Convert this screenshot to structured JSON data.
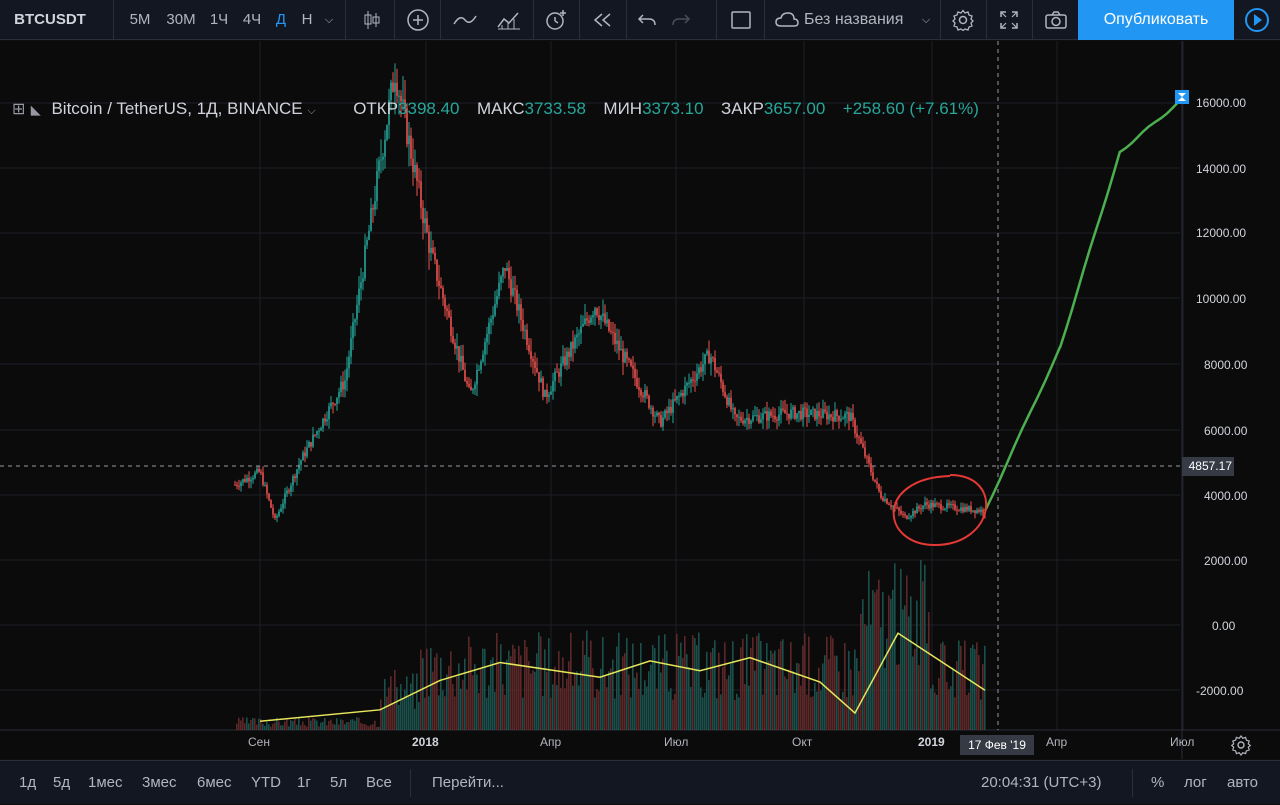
{
  "toolbar": {
    "symbol": "BTCUSDT",
    "timeframes": [
      "5М",
      "30М",
      "1Ч",
      "4Ч",
      "Д",
      "Н"
    ],
    "active_timeframe": "Д",
    "layout_name": "Без названия",
    "publish_label": "Опубликовать",
    "accent": "#2196f3"
  },
  "legend": {
    "title": "Bitcoin / TetherUS, 1Д, BINANCE",
    "open_label": "ОТКР",
    "open_value": "3398.40",
    "high_label": "МАКС",
    "high_value": "3733.58",
    "low_label": "МИН",
    "low_value": "3373.10",
    "close_label": "ЗАКР",
    "close_value": "3657.00",
    "change": "+258.60 (+7.61%)"
  },
  "price_axis": {
    "labels": [
      "16000.00",
      "14000.00",
      "12000.00",
      "10000.00",
      "8000.00",
      "6000.00",
      "4000.00",
      "2000.00",
      "0.00",
      "-2000.00"
    ],
    "crosshair_price": "4857.17"
  },
  "date_axis": {
    "labels": [
      "Сен",
      "2018",
      "Апр",
      "Июл",
      "Окт",
      "2019",
      "Апр",
      "Июл"
    ],
    "crosshair_date": "17 Фев '19"
  },
  "chart_data": {
    "type": "candlestick",
    "title": "Bitcoin / TetherUS, 1Д, BINANCE",
    "ylim": [
      -3000,
      17500
    ],
    "price_path": [
      [
        "2017-08",
        4300
      ],
      [
        "2017-09",
        4700
      ],
      [
        "2017-09-15",
        3200
      ],
      [
        "2017-10",
        5000
      ],
      [
        "2017-11",
        7500
      ],
      [
        "2017-12",
        17000
      ],
      [
        "2018-01",
        11500
      ],
      [
        "2018-02",
        7000
      ],
      [
        "2018-03",
        11000
      ],
      [
        "2018-04",
        7000
      ],
      [
        "2018-05",
        9800
      ],
      [
        "2018-06",
        6200
      ],
      [
        "2018-07",
        8300
      ],
      [
        "2018-08",
        6300
      ],
      [
        "2018-09",
        6500
      ],
      [
        "2018-10",
        6400
      ],
      [
        "2018-11",
        4000
      ],
      [
        "2018-12",
        3300
      ],
      [
        "2019-01",
        3700
      ],
      [
        "2019-02",
        3500
      ]
    ],
    "projection": [
      [
        "2019-02",
        3500
      ],
      [
        "2019-04",
        8500
      ],
      [
        "2019-06",
        14500
      ],
      [
        "2019-07",
        16000
      ]
    ],
    "volume_ma": [
      [
        -2950
      ],
      [
        -2600
      ],
      [
        -1700
      ],
      [
        -1150
      ],
      [
        -1600
      ],
      [
        -1100
      ],
      [
        -1400
      ],
      [
        -1000
      ],
      [
        -1750
      ],
      [
        -2700
      ],
      [
        -250
      ],
      [
        -2000
      ]
    ],
    "colors": {
      "up": "#26a69a",
      "down": "#ef5350",
      "projection": "#4caf50",
      "annotation": "#e53935",
      "volume_ma": "#e6e65a"
    }
  },
  "bottombar": {
    "ranges": [
      "1д",
      "5д",
      "1мес",
      "3мес",
      "6мес",
      "YTD",
      "1г",
      "5л",
      "Все"
    ],
    "goto_label": "Перейти...",
    "time": "20:04:31 (UTC+3)",
    "percent_label": "%",
    "log_label": "лог",
    "auto_label": "авто"
  }
}
